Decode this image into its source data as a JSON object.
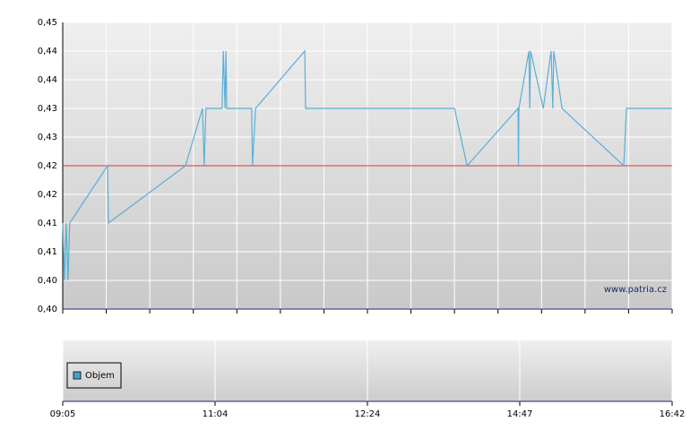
{
  "chart_data": [
    {
      "type": "line",
      "x": [
        0,
        0.04,
        0.08,
        0.12,
        0.16,
        1.03,
        1.05,
        2.82,
        3.21,
        3.25,
        3.29,
        3.66,
        3.69,
        3.73,
        3.75,
        3.77,
        4.34,
        4.36,
        4.43,
        5.56,
        5.58,
        9.0,
        9.29,
        10.46,
        10.47,
        10.48,
        10.71,
        10.73,
        10.75,
        11.04,
        11.22,
        11.26,
        11.28,
        11.47,
        12.89,
        12.95,
        14
      ],
      "values": [
        0.415,
        0.405,
        0.415,
        0.405,
        0.415,
        0.425,
        0.415,
        0.425,
        0.435,
        0.425,
        0.435,
        0.435,
        0.445,
        0.435,
        0.445,
        0.435,
        0.435,
        0.425,
        0.435,
        0.445,
        0.435,
        0.435,
        0.425,
        0.435,
        0.425,
        0.435,
        0.445,
        0.435,
        0.445,
        0.435,
        0.445,
        0.435,
        0.445,
        0.435,
        0.425,
        0.435,
        0.435
      ],
      "color": "#5aafd6",
      "reference_line": {
        "value": 0.425,
        "color": "#d03a3a"
      },
      "xlim": [
        0,
        14
      ],
      "xticks": [
        0,
        1,
        2,
        3,
        4,
        5,
        6,
        7,
        8,
        9,
        10,
        11,
        12,
        13,
        14
      ],
      "ylim": [
        0.4,
        0.45
      ],
      "yticks": [
        {
          "value": 0.4,
          "label": "0,40"
        },
        {
          "value": 0.405,
          "label": "0,40"
        },
        {
          "value": 0.41,
          "label": "0,41"
        },
        {
          "value": 0.415,
          "label": "0,41"
        },
        {
          "value": 0.42,
          "label": "0,42"
        },
        {
          "value": 0.425,
          "label": "0,42"
        },
        {
          "value": 0.43,
          "label": "0,43"
        },
        {
          "value": 0.435,
          "label": "0,43"
        },
        {
          "value": 0.44,
          "label": "0,44"
        },
        {
          "value": 0.445,
          "label": "0,44"
        },
        {
          "value": 0.45,
          "label": "0,45"
        }
      ],
      "grid": true,
      "watermark": "www.patria.cz"
    },
    {
      "type": "bar",
      "series": [
        {
          "name": "Objem",
          "color": "#4a9fd0"
        }
      ],
      "legend": "upper left",
      "xlim": [
        0,
        14
      ],
      "xticks": [
        {
          "value": 0,
          "label": "09:05"
        },
        {
          "value": 3.5,
          "label": "11:04"
        },
        {
          "value": 7,
          "label": "12:24"
        },
        {
          "value": 10.5,
          "label": "14:47"
        },
        {
          "value": 14,
          "label": "16:42"
        }
      ],
      "grid": true
    }
  ]
}
